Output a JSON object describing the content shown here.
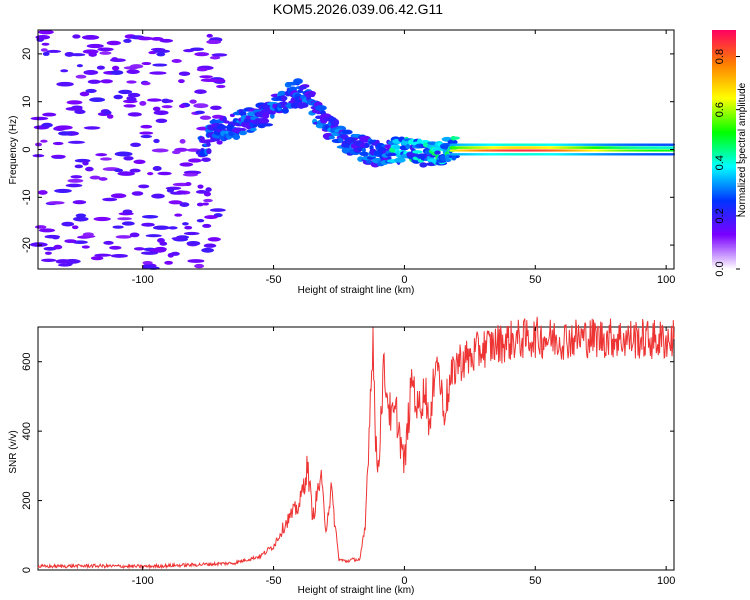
{
  "title": "KOM5.2026.039.06.42.G11",
  "chart_data": [
    {
      "type": "heatmap",
      "xlabel": "Height of straight line (km)",
      "ylabel": "Frequency (Hz)",
      "xlim": [
        -140,
        103
      ],
      "ylim": [
        -25,
        25
      ],
      "xticks": [
        "-100",
        "-50",
        "0",
        "50",
        "100"
      ],
      "yticks": [
        "-20",
        "-10",
        "0",
        "10",
        "20"
      ],
      "colorbar": {
        "label": "Normalized spectral amplitude",
        "range": [
          0,
          0.9
        ],
        "ticks": [
          "0.0",
          "0.2",
          "0.4",
          "0.6",
          "0.8"
        ],
        "colormap": [
          "#ffffff",
          "#7a00ff",
          "#0033ff",
          "#00ffff",
          "#00ff00",
          "#ffff00",
          "#ff8000",
          "#ff0060"
        ]
      },
      "ridge": [
        {
          "x": -75,
          "y": 3
        },
        {
          "x": -70,
          "y": 4
        },
        {
          "x": -60,
          "y": 6
        },
        {
          "x": -50,
          "y": 8
        },
        {
          "x": -45,
          "y": 11
        },
        {
          "x": -40,
          "y": 12
        },
        {
          "x": -35,
          "y": 9
        },
        {
          "x": -30,
          "y": 5
        },
        {
          "x": -20,
          "y": 1
        },
        {
          "x": -10,
          "y": -1
        },
        {
          "x": 0,
          "y": 0
        },
        {
          "x": 10,
          "y": -1
        },
        {
          "x": 20,
          "y": 0
        },
        {
          "x": 50,
          "y": 0
        },
        {
          "x": 100,
          "y": 0
        }
      ]
    },
    {
      "type": "line",
      "xlabel": "Height of straight line (km)",
      "ylabel": "SNR (v/v)",
      "xlim": [
        -140,
        103
      ],
      "ylim": [
        0,
        700
      ],
      "xticks": [
        "-100",
        "-50",
        "0",
        "50",
        "100"
      ],
      "yticks": [
        "0",
        "200",
        "400",
        "600"
      ],
      "color": "#ee3333",
      "series": [
        {
          "name": "SNR",
          "x": [
            -140,
            -120,
            -100,
            -80,
            -65,
            -55,
            -50,
            -45,
            -40,
            -37,
            -35,
            -32,
            -30,
            -28,
            -25,
            -22,
            -20,
            -17,
            -15,
            -13,
            -12,
            -11,
            -10,
            -8,
            -5,
            -3,
            0,
            3,
            5,
            8,
            10,
            12,
            15,
            17,
            20,
            25,
            30,
            40,
            50,
            60,
            70,
            80,
            90,
            100,
            103
          ],
          "y": [
            10,
            12,
            10,
            15,
            20,
            40,
            70,
            140,
            190,
            300,
            150,
            270,
            120,
            230,
            30,
            25,
            30,
            30,
            120,
            500,
            680,
            350,
            300,
            580,
            430,
            450,
            300,
            560,
            460,
            520,
            400,
            640,
            460,
            520,
            600,
            610,
            640,
            660,
            670,
            665,
            670,
            668,
            665,
            662,
            665
          ]
        }
      ]
    }
  ]
}
